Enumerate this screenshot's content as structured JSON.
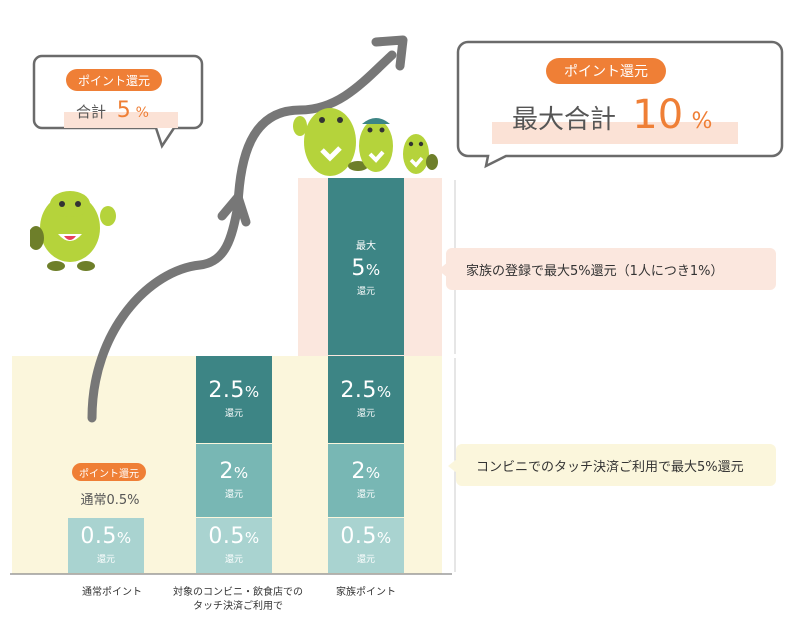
{
  "bubbles": {
    "left": {
      "pill": "ポイント還元",
      "label": "合計",
      "value": "5",
      "unit": "%"
    },
    "right": {
      "pill": "ポイント還元",
      "label": "最大合計",
      "value": "10",
      "unit": "%"
    }
  },
  "notes": {
    "family": "家族の登録で最大5%還元（1人につき1%）",
    "convenience": "コンビニでのタッチ決済ご利用で最大5%還元"
  },
  "small_callout": {
    "pill": "ポイント還元",
    "label": "通常0.5%"
  },
  "colors": {
    "orange": "#ef7f36",
    "teal_dark": "#3d8585",
    "teal_mid": "#78b7b4",
    "teal_light": "#a9d3d0",
    "band_yellow": "#fbf6dc",
    "band_pink": "#fbe7de",
    "arrow_gray": "#777777",
    "mascot_green": "#b5d33b"
  },
  "chart_data": {
    "type": "bar",
    "stacked": true,
    "categories": [
      "通常ポイント",
      "対象のコンビニ・飲食店での\nタッチ決済ご利用で",
      "家族ポイント"
    ],
    "series": [
      {
        "values": [
          0.5,
          0.5,
          0.5
        ],
        "labels": [
          "0.5%",
          "0.5%",
          "0.5%"
        ],
        "sub": "還元"
      },
      {
        "values": [
          0,
          2,
          2
        ],
        "labels": [
          "",
          "2%",
          "2%"
        ],
        "sub": "還元"
      },
      {
        "values": [
          0,
          2.5,
          2.5
        ],
        "labels": [
          "",
          "2.5%",
          "2.5%"
        ],
        "sub": "還元"
      },
      {
        "values": [
          0,
          0,
          5
        ],
        "labels": [
          "",
          "",
          "5%"
        ],
        "sub": "還元",
        "top": "最大"
      }
    ],
    "totals": [
      0.5,
      5,
      10
    ],
    "grid": false,
    "legend": "none"
  }
}
